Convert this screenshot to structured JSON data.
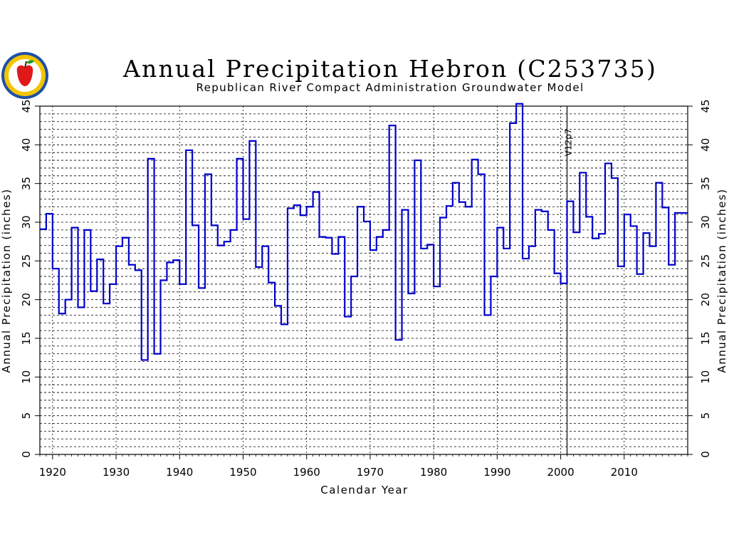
{
  "chart_data": {
    "type": "line",
    "style": "step",
    "title": "Annual Precipitation Hebron (C253735)",
    "subtitle": "Republican River Compact Administration Groundwater Model",
    "xlabel": "Calendar Year",
    "ylabel": "Annual Precipitation (inches)",
    "ylabel_right": "Annual Precipitation (inches)",
    "xlim": [
      1918,
      2020
    ],
    "ylim": [
      0,
      45
    ],
    "x_ticks": [
      1920,
      1930,
      1940,
      1950,
      1960,
      1970,
      1980,
      1990,
      2000,
      2010
    ],
    "y_ticks": [
      0,
      5,
      10,
      15,
      20,
      25,
      30,
      35,
      40,
      45
    ],
    "grid": true,
    "line_color": "#0000cc",
    "annotation": {
      "year": 2001,
      "text": "V12p7"
    },
    "series": [
      {
        "x": [
          1918,
          1919,
          1920,
          1921,
          1922,
          1923,
          1924,
          1925,
          1926,
          1927,
          1928,
          1929,
          1930,
          1931,
          1932,
          1933,
          1934,
          1935,
          1936,
          1937,
          1938,
          1939,
          1940,
          1941,
          1942,
          1943,
          1944,
          1945,
          1946,
          1947,
          1948,
          1949,
          1950,
          1951,
          1952,
          1953,
          1954,
          1955,
          1956,
          1957,
          1958,
          1959,
          1960,
          1961,
          1962,
          1963,
          1964,
          1965,
          1966,
          1967,
          1968,
          1969,
          1970,
          1971,
          1972,
          1973,
          1974,
          1975,
          1976,
          1977,
          1978,
          1979,
          1980,
          1981,
          1982,
          1983,
          1984,
          1985,
          1986,
          1987,
          1988,
          1989,
          1990,
          1991,
          1992,
          1993,
          1994,
          1995,
          1996,
          1997,
          1998,
          1999,
          2000,
          2001,
          2002,
          2003,
          2004,
          2005,
          2006,
          2007,
          2008,
          2009,
          2010,
          2011,
          2012,
          2013,
          2014,
          2015,
          2016,
          2017,
          2018,
          2019
        ],
        "values": [
          29.1,
          31.1,
          24.0,
          18.2,
          20.0,
          29.3,
          19.0,
          29.0,
          21.1,
          25.2,
          19.5,
          22.0,
          26.9,
          28.0,
          24.5,
          23.8,
          12.2,
          38.2,
          13.0,
          22.5,
          24.8,
          25.1,
          22.0,
          39.3,
          29.6,
          21.5,
          36.2,
          29.6,
          27.0,
          27.5,
          29.0,
          38.2,
          30.4,
          40.5,
          24.2,
          26.9,
          22.2,
          19.2,
          16.8,
          31.8,
          32.2,
          30.9,
          32.0,
          33.9,
          28.1,
          28.0,
          25.9,
          28.1,
          17.8,
          23.0,
          32.0,
          30.1,
          26.4,
          28.1,
          29.0,
          42.5,
          14.8,
          31.6,
          20.8,
          38.0,
          26.6,
          27.1,
          21.7,
          30.6,
          32.1,
          35.1,
          32.6,
          32.0,
          38.1,
          36.2,
          18.0,
          23.0,
          29.3,
          26.6,
          42.8,
          45.3,
          25.3,
          26.9,
          31.6,
          31.4,
          29.0,
          23.4,
          22.1,
          32.7,
          28.7,
          36.4,
          30.7,
          27.9,
          28.5,
          37.6,
          35.7,
          24.3,
          31.0,
          29.5,
          23.3,
          28.6,
          26.9,
          35.1,
          31.9,
          24.5,
          31.2,
          31.2
        ]
      }
    ]
  }
}
